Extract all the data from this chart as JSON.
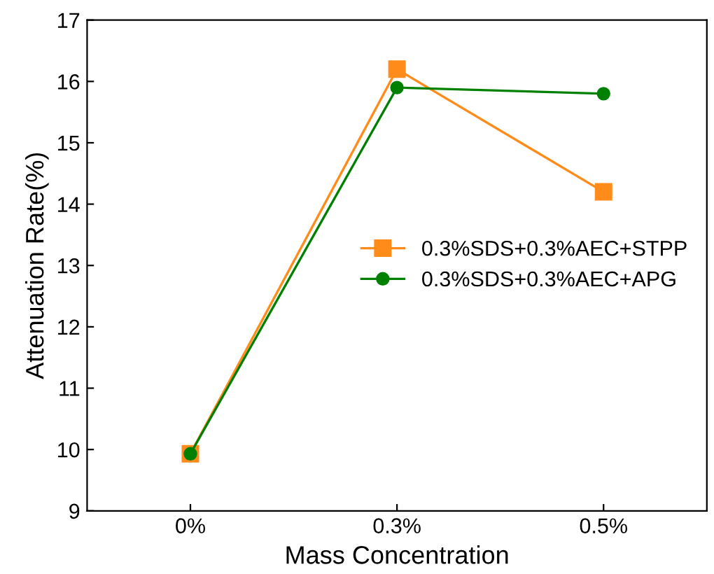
{
  "chart_data": {
    "type": "line",
    "xlabel": "Mass Concentration",
    "ylabel": "Attenuation Rate(%)",
    "categories": [
      "0%",
      "0.3%",
      "0.5%"
    ],
    "series": [
      {
        "name": "0.3%SDS+0.3%AEC+STPP",
        "color": "#ff8c1a",
        "marker": "square",
        "values": [
          9.93,
          16.2,
          14.2
        ]
      },
      {
        "name": "0.3%SDS+0.3%AEC+APG",
        "color": "#008000",
        "marker": "circle",
        "values": [
          9.93,
          15.9,
          15.8
        ]
      }
    ],
    "ylim": [
      9,
      17
    ],
    "yticks": [
      9,
      10,
      11,
      12,
      13,
      14,
      15,
      16,
      17
    ],
    "legend": "center right",
    "line_style": "solid"
  }
}
